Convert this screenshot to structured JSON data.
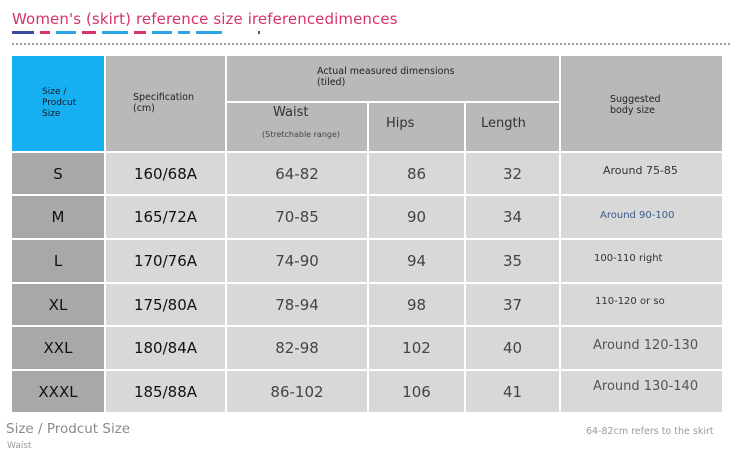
{
  "title": "Women's (skirt) reference size ireferencedimences",
  "colors": {
    "title": "#d6336c",
    "corner_cell": "#16b0f2",
    "header_cell": "#b9b9b9",
    "row_header_cell": "#a8a8a8",
    "body_cell": "#d8d8d8"
  },
  "table": {
    "corner_label": "Size / Prodcut Size",
    "specification_label": "Specification (cm)",
    "measured_group_label": "Actual measured dimensions (tiled)",
    "waist_label": "Waist",
    "waist_sub_label": "(Stretchable range)",
    "hips_label": "Hips",
    "length_label": "Length",
    "suggested_label": "Suggested body size",
    "rows": [
      {
        "size": "S",
        "spec": "160/68A",
        "waist": "64-82",
        "hips": "86",
        "length": "32",
        "suggested": "Around 75-85"
      },
      {
        "size": "M",
        "spec": "165/72A",
        "waist": "70-85",
        "hips": "90",
        "length": "34",
        "suggested": "Around 90-100"
      },
      {
        "size": "L",
        "spec": "170/76A",
        "waist": "74-90",
        "hips": "94",
        "length": "35",
        "suggested": "100-110 right"
      },
      {
        "size": "XL",
        "spec": "175/80A",
        "waist": "78-94",
        "hips": "98",
        "length": "37",
        "suggested": "110-120 or so"
      },
      {
        "size": "XXL",
        "spec": "180/84A",
        "waist": "82-98",
        "hips": "102",
        "length": "40",
        "suggested": "Around 120-130"
      },
      {
        "size": "XXXL",
        "spec": "185/88A",
        "waist": "86-102",
        "hips": "106",
        "length": "41",
        "suggested": "Around 130-140"
      }
    ]
  },
  "footer": {
    "left_line1": "Size / Prodcut Size",
    "left_line2": "Waist",
    "right_note": "64-82cm refers to the skirt"
  }
}
